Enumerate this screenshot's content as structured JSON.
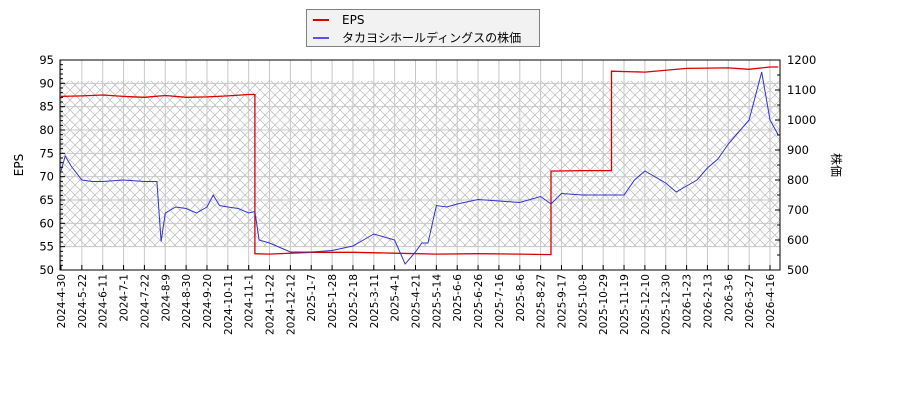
{
  "chart_data": {
    "type": "line",
    "title": "",
    "legend_position": "top-center",
    "grid": true,
    "hatched_band": {
      "eps_from": 55,
      "eps_to": 90.5
    },
    "xlabel": "",
    "x_tick_labels": [
      "2024-4-30",
      "2024-5-22",
      "2024-6-11",
      "2024-7-1",
      "2024-7-22",
      "2024-8-9",
      "2024-8-30",
      "2024-9-20",
      "2024-10-11",
      "2024-11-1",
      "2024-11-22",
      "2024-12-12",
      "2025-1-7",
      "2025-1-28",
      "2025-2-18",
      "2025-3-11",
      "2025-4-1",
      "2025-4-21",
      "2025-5-14",
      "2025-6-6",
      "2025-6-26",
      "2025-7-16",
      "2025-8-6",
      "2025-8-27",
      "2025-9-17",
      "2025-10-8",
      "2025-10-29",
      "2025-11-19",
      "2025-12-10",
      "2025-12-30",
      "2026-1-23",
      "2026-2-13",
      "2026-3-6",
      "2026-3-27",
      "2026-4-16"
    ],
    "y_left": {
      "label": "EPS",
      "ylim": [
        50,
        95
      ],
      "ticks": [
        50,
        55,
        60,
        65,
        70,
        75,
        80,
        85,
        90,
        95
      ]
    },
    "y_right": {
      "label": "株価",
      "ylim": [
        500,
        1200
      ],
      "ticks": [
        500,
        600,
        700,
        800,
        900,
        1000,
        1100,
        1200
      ]
    },
    "series": [
      {
        "name": "EPS",
        "axis": "left",
        "color": "#dd0000",
        "x_index": [
          0,
          1,
          2,
          3,
          4,
          5,
          6,
          7,
          8,
          9,
          9.3,
          9.3,
          10,
          12,
          14,
          16,
          18,
          20,
          22,
          23.5,
          23.5,
          25,
          26.4,
          26.4,
          28,
          30,
          32,
          33,
          34,
          34.4
        ],
        "values": [
          87.2,
          87.3,
          87.5,
          87.2,
          87.0,
          87.4,
          87.0,
          87.1,
          87.3,
          87.6,
          87.6,
          53.5,
          53.4,
          53.8,
          53.8,
          53.6,
          53.4,
          53.5,
          53.4,
          53.3,
          71.2,
          71.3,
          71.3,
          92.6,
          92.4,
          93.2,
          93.3,
          93.0,
          93.5,
          93.5
        ]
      },
      {
        "name": "タカヨシホールディングスの株価",
        "axis": "right",
        "color": "#3333cc",
        "x_index": [
          0,
          0.2,
          0.5,
          1,
          1.5,
          2,
          3,
          4,
          4.6,
          4.8,
          5,
          5.5,
          6,
          6.5,
          7,
          7.3,
          7.6,
          8,
          8.5,
          9,
          9.3,
          9.5,
          10,
          11,
          12,
          13,
          14,
          14.5,
          15,
          15.5,
          16,
          16.5,
          17,
          17.3,
          17.6,
          18,
          18.5,
          19,
          20,
          21,
          22,
          23,
          23.5,
          24,
          25,
          26,
          27,
          27.5,
          28,
          29,
          29.5,
          30,
          30.5,
          31,
          31.5,
          32,
          32.5,
          33,
          33.3,
          33.6,
          34,
          34.4
        ],
        "values": [
          830,
          880,
          845,
          800,
          795,
          795,
          800,
          795,
          795,
          595,
          690,
          710,
          705,
          690,
          710,
          750,
          715,
          710,
          705,
          690,
          695,
          600,
          590,
          560,
          560,
          565,
          580,
          600,
          620,
          610,
          600,
          520,
          560,
          590,
          590,
          715,
          710,
          720,
          735,
          730,
          725,
          745,
          720,
          755,
          750,
          750,
          750,
          800,
          830,
          790,
          760,
          780,
          800,
          840,
          870,
          920,
          960,
          1000,
          1080,
          1160,
          1000,
          950
        ]
      }
    ]
  },
  "legend": {
    "items": [
      {
        "label": "EPS",
        "color": "#dd0000"
      },
      {
        "label": "タカヨシホールディングスの株価",
        "color": "#5555ee"
      }
    ]
  },
  "axes": {
    "left_label": "EPS",
    "right_label": "株価"
  }
}
